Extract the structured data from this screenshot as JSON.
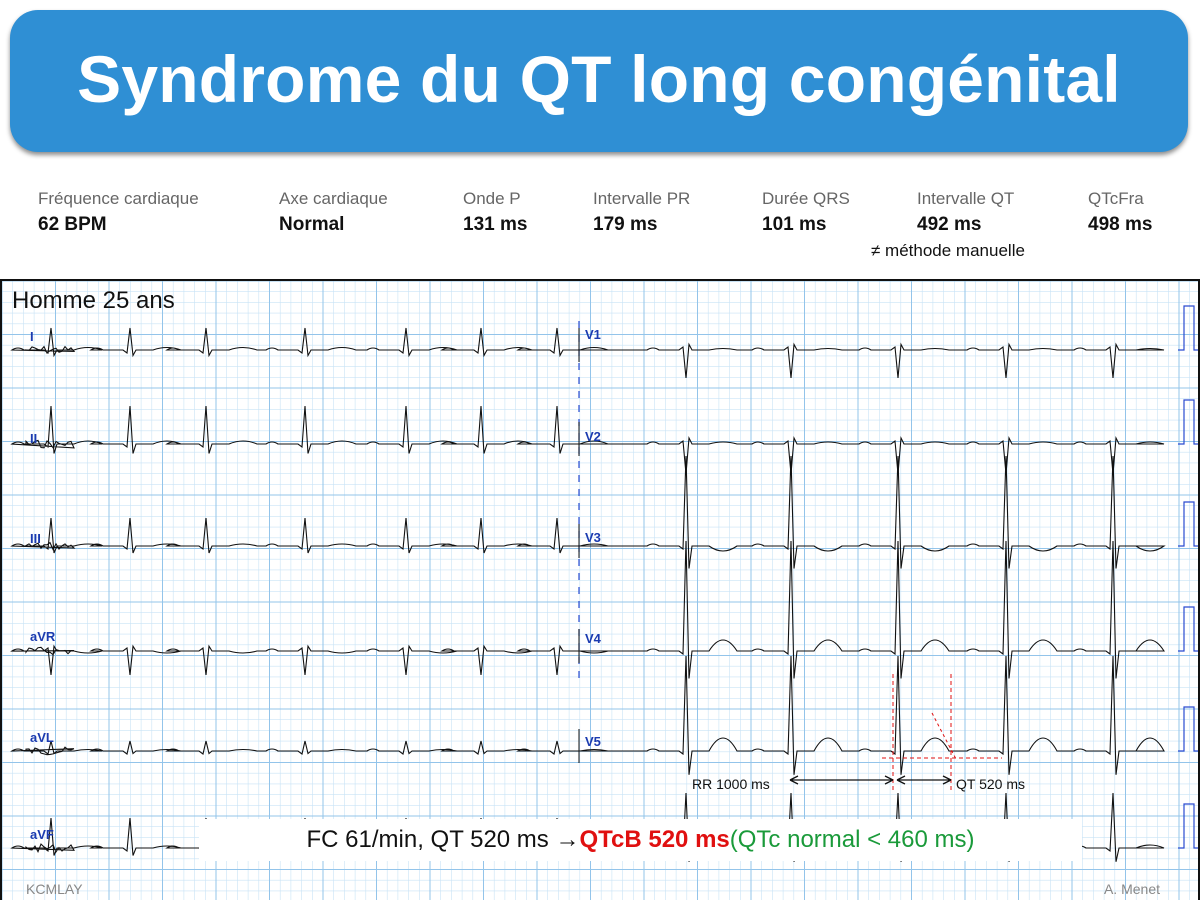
{
  "title": "Syndrome du QT long congénital",
  "colors": {
    "banner": "#2f8fd4",
    "grid_minor": "#c9e3f6",
    "grid_major": "#93c4ea",
    "lead_label": "#1b3bb0",
    "measure_red": "#e01010",
    "qtcb_red": "#e01010",
    "normal_green": "#1a9a3a",
    "trace": "#111111"
  },
  "metrics": [
    {
      "label": "Fréquence cardiaque",
      "value": "62 BPM"
    },
    {
      "label": "Axe cardiaque",
      "value": "Normal"
    },
    {
      "label": "Onde P",
      "value": "131 ms"
    },
    {
      "label": "Intervalle PR",
      "value": "179 ms"
    },
    {
      "label": "Durée QRS",
      "value": "101 ms"
    },
    {
      "label": "Intervalle QT",
      "value": "492 ms",
      "note": "≠ méthode manuelle"
    },
    {
      "label": "QTcFra",
      "value": "498 ms"
    }
  ],
  "ecg": {
    "patient": "Homme 25 ans",
    "leads_left": [
      "I",
      "II",
      "III",
      "aVR",
      "aVL",
      "aVF"
    ],
    "leads_right": [
      "V1",
      "V2",
      "V3",
      "V4",
      "V5"
    ],
    "annotations": {
      "rr": "RR 1000 ms",
      "qt": "QT 520 ms"
    }
  },
  "result": {
    "main": "FC 61/min, QT 520 ms → ",
    "qtcb": "QTcB 520 ms",
    "normal": " (QTc normal < 460 ms)"
  },
  "footer": {
    "left": "KCMLAY",
    "right": "A. Menet"
  }
}
